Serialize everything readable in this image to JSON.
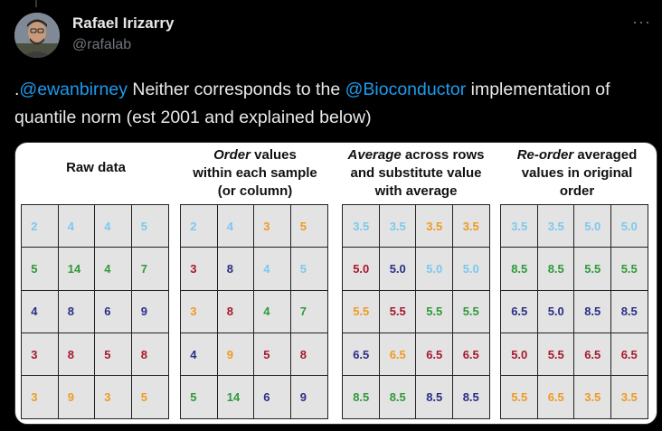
{
  "post": {
    "display_name": "Rafael Irizarry",
    "handle": "@rafalab",
    "more_icon": "more-icon",
    "text": {
      "prefix": ".",
      "mention1": "@ewanbirney",
      "mid": " Neither corresponds to the ",
      "mention2": "@Bioconductor",
      "suffix": " implementation of quantile norm (est 2001 and explained below)"
    }
  },
  "figure": {
    "panels": [
      {
        "head": [
          "Raw data"
        ],
        "cells": [
          [
            "2",
            "lb"
          ],
          [
            "4",
            "lb"
          ],
          [
            "4",
            "lb"
          ],
          [
            "5",
            "lb"
          ],
          [
            "5",
            "gr"
          ],
          [
            "14",
            "gr"
          ],
          [
            "4",
            "gr"
          ],
          [
            "7",
            "gr"
          ],
          [
            "4",
            "nv"
          ],
          [
            "8",
            "nv"
          ],
          [
            "6",
            "nv"
          ],
          [
            "9",
            "nv"
          ],
          [
            "3",
            "rd"
          ],
          [
            "8",
            "rd"
          ],
          [
            "5",
            "rd"
          ],
          [
            "8",
            "rd"
          ],
          [
            "3",
            "or"
          ],
          [
            "9",
            "or"
          ],
          [
            "3",
            "or"
          ],
          [
            "5",
            "or"
          ]
        ]
      },
      {
        "head_em": "Order",
        "head": [
          " values",
          "within each sample",
          "(or column)"
        ],
        "cells": [
          [
            "2",
            "lb"
          ],
          [
            "4",
            "lb"
          ],
          [
            "3",
            "or"
          ],
          [
            "5",
            "or"
          ],
          [
            "3",
            "rd"
          ],
          [
            "8",
            "nv"
          ],
          [
            "4",
            "lb"
          ],
          [
            "5",
            "lb"
          ],
          [
            "3",
            "or"
          ],
          [
            "8",
            "rd"
          ],
          [
            "4",
            "gr"
          ],
          [
            "7",
            "gr"
          ],
          [
            "4",
            "nv"
          ],
          [
            "9",
            "or"
          ],
          [
            "5",
            "rd"
          ],
          [
            "8",
            "rd"
          ],
          [
            "5",
            "gr"
          ],
          [
            "14",
            "gr"
          ],
          [
            "6",
            "nv"
          ],
          [
            "9",
            "nv"
          ]
        ]
      },
      {
        "head_em": "Average",
        "head": [
          " across rows",
          "and substitute value",
          "with average"
        ],
        "cells": [
          [
            "3.5",
            "lb"
          ],
          [
            "3.5",
            "lb"
          ],
          [
            "3.5",
            "or"
          ],
          [
            "3.5",
            "or"
          ],
          [
            "5.0",
            "rd"
          ],
          [
            "5.0",
            "nv"
          ],
          [
            "5.0",
            "lb"
          ],
          [
            "5.0",
            "lb"
          ],
          [
            "5.5",
            "or"
          ],
          [
            "5.5",
            "rd"
          ],
          [
            "5.5",
            "gr"
          ],
          [
            "5.5",
            "gr"
          ],
          [
            "6.5",
            "nv"
          ],
          [
            "6.5",
            "or"
          ],
          [
            "6.5",
            "rd"
          ],
          [
            "6.5",
            "rd"
          ],
          [
            "8.5",
            "gr"
          ],
          [
            "8.5",
            "gr"
          ],
          [
            "8.5",
            "nv"
          ],
          [
            "8.5",
            "nv"
          ]
        ]
      },
      {
        "head_em": "Re-order",
        "head": [
          " averaged",
          "values in original",
          "order"
        ],
        "cells": [
          [
            "3.5",
            "lb"
          ],
          [
            "3.5",
            "lb"
          ],
          [
            "5.0",
            "lb"
          ],
          [
            "5.0",
            "lb"
          ],
          [
            "8.5",
            "gr"
          ],
          [
            "8.5",
            "gr"
          ],
          [
            "5.5",
            "gr"
          ],
          [
            "5.5",
            "gr"
          ],
          [
            "6.5",
            "nv"
          ],
          [
            "5.0",
            "nv"
          ],
          [
            "8.5",
            "nv"
          ],
          [
            "8.5",
            "nv"
          ],
          [
            "5.0",
            "rd"
          ],
          [
            "5.5",
            "rd"
          ],
          [
            "6.5",
            "rd"
          ],
          [
            "6.5",
            "rd"
          ],
          [
            "5.5",
            "or"
          ],
          [
            "6.5",
            "or"
          ],
          [
            "3.5",
            "or"
          ],
          [
            "3.5",
            "or"
          ]
        ]
      }
    ]
  }
}
